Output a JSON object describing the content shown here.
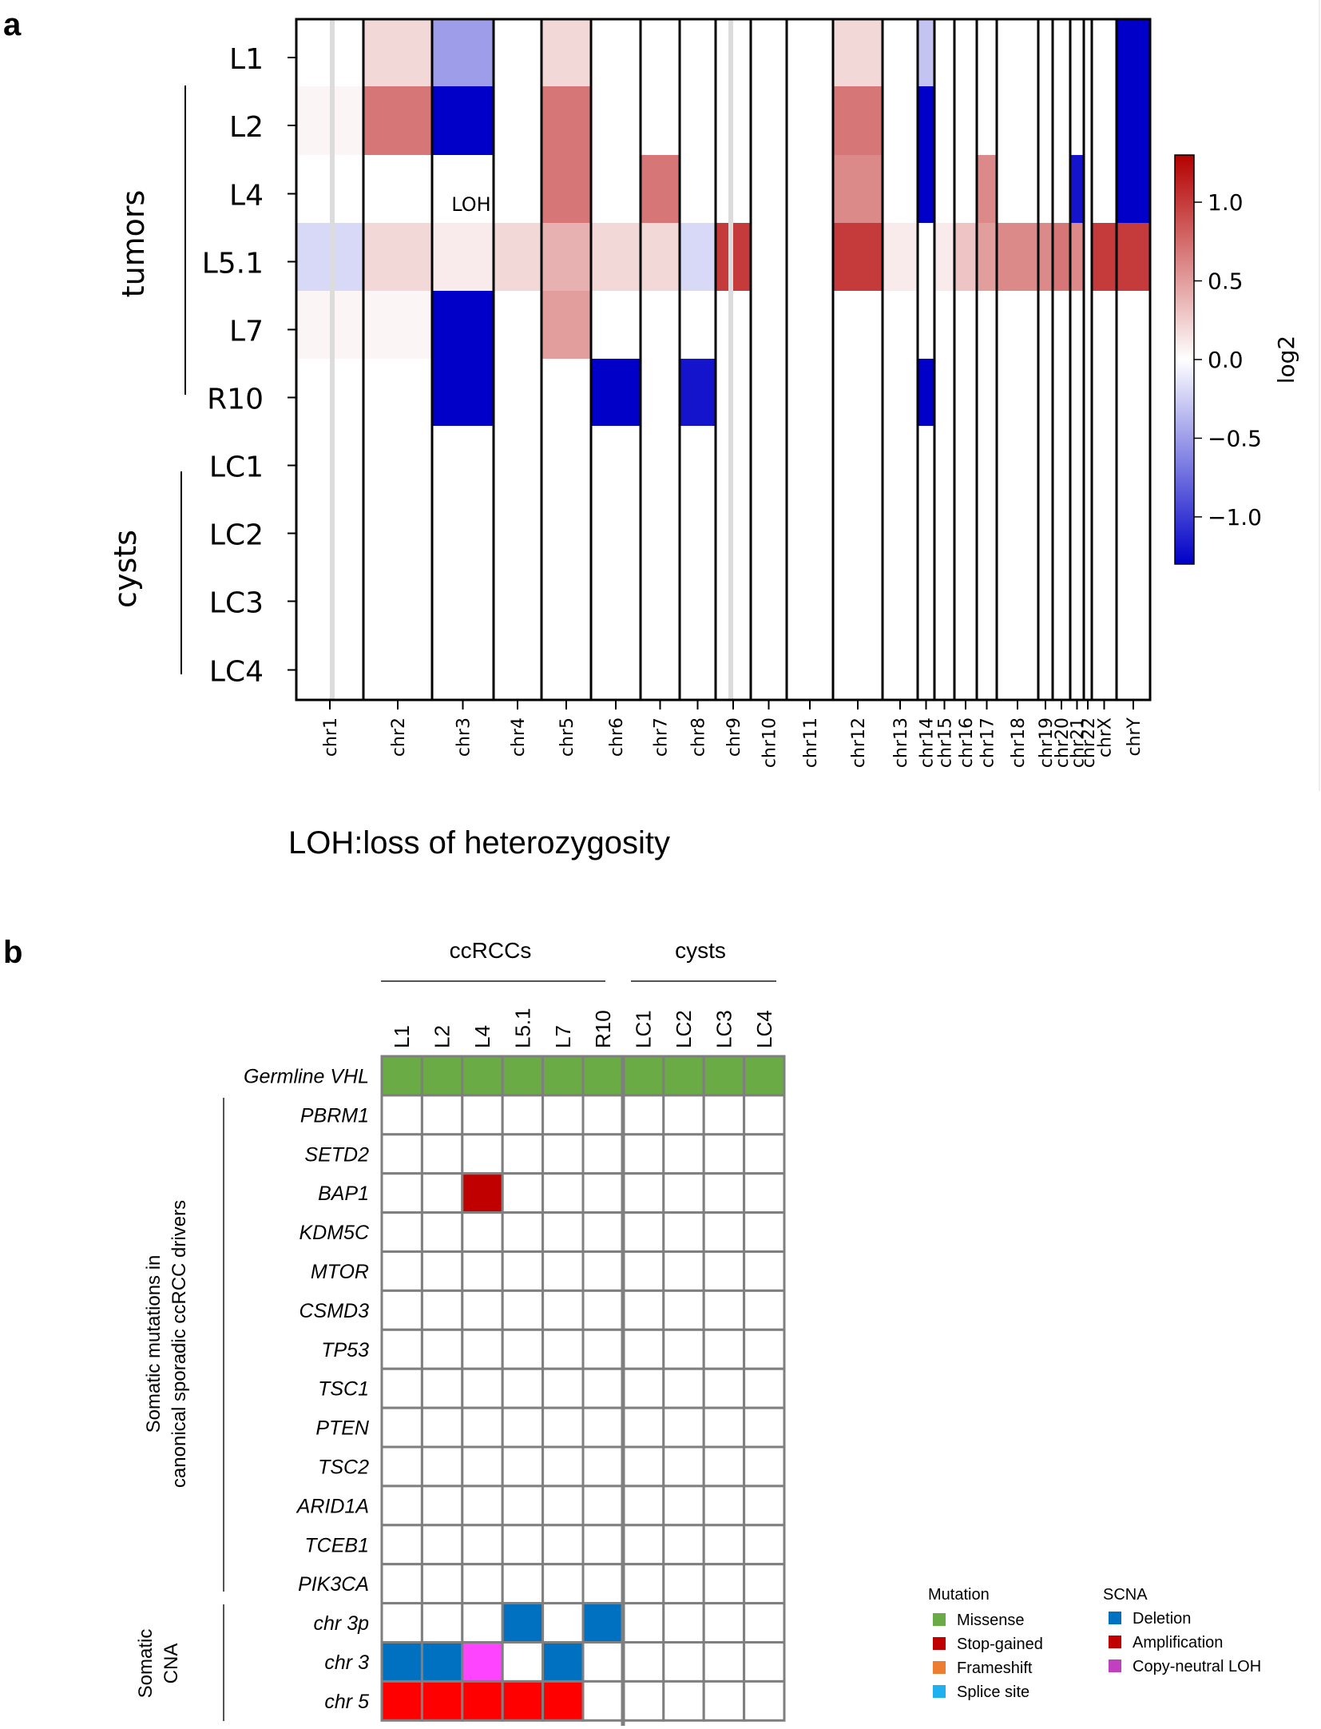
{
  "panel_a": {
    "label": "a",
    "group_tumors": "tumors",
    "group_cysts": "cysts",
    "loh_annotation": "LOH",
    "footnote": "LOH:loss of heterozygosity",
    "colorbar": {
      "label": "log2",
      "ticks": [
        "1.0",
        "0.5",
        "0.0",
        "−0.5",
        "−1.0"
      ],
      "tick_values": [
        1.0,
        0.5,
        0.0,
        -0.5,
        -1.0
      ],
      "range": [
        -1.3,
        1.3
      ],
      "colors": [
        "#0000c8",
        "#ffffff",
        "#b40000"
      ]
    }
  },
  "panel_b": {
    "label": "b",
    "group_ccrcc": "ccRCCs",
    "group_cysts": "cysts",
    "side_label_line1": "Somatic mutations in",
    "side_label_line2": "canonical sporadic ccRCC drivers",
    "cna_label_line1": "Somatic",
    "cna_label_line2": "CNA",
    "legend": {
      "mutation_title": "Mutation",
      "mutation_items": [
        {
          "label": "Missense",
          "color": "#6aab46"
        },
        {
          "label": "Stop-gained",
          "color": "#c00000"
        },
        {
          "label": "Frameshift",
          "color": "#ed7d31"
        },
        {
          "label": "Splice site",
          "color": "#1fb0ef"
        }
      ],
      "scna_title": "SCNA",
      "scna_items": [
        {
          "label": "Deletion",
          "color": "#0070c0"
        },
        {
          "label": "Amplification",
          "color": "#c00000"
        },
        {
          "label": "Copy-neutral LOH",
          "color": "#c040c0"
        }
      ]
    }
  },
  "chart_data": [
    {
      "type": "heatmap",
      "title": "",
      "xlabel": "",
      "ylabel": "",
      "rows": [
        "L1",
        "L2",
        "L4",
        "L5.1",
        "L7",
        "R10",
        "LC1",
        "LC2",
        "LC3",
        "LC4"
      ],
      "columns": [
        "chr1",
        "chr2",
        "chr3",
        "chr4",
        "chr5",
        "chr6",
        "chr7",
        "chr8",
        "chr9",
        "chr10",
        "chr11",
        "chr12",
        "chr13",
        "chr14",
        "chr15",
        "chr16",
        "chr17",
        "chr18",
        "chr19",
        "chr20",
        "chr21",
        "chr22",
        "chrX",
        "chrY"
      ],
      "values": [
        [
          0,
          0.2,
          -0.5,
          0,
          0.2,
          0,
          0,
          0,
          0,
          0,
          0,
          0.2,
          0,
          -0.3,
          0,
          0,
          0,
          0,
          0,
          0,
          0,
          0,
          0,
          -1.3
        ],
        [
          0.05,
          0.7,
          -1.3,
          0,
          0.7,
          0,
          0,
          0,
          0,
          0,
          0,
          0.7,
          0,
          -1.3,
          0,
          0,
          0,
          0,
          0,
          0,
          0,
          0,
          0,
          -1.3
        ],
        [
          0,
          0,
          0,
          0,
          0.7,
          0,
          0.7,
          0,
          0,
          0,
          0,
          0.6,
          0,
          -1.3,
          0,
          0,
          0.6,
          0,
          0,
          0,
          -1.2,
          0,
          0,
          -1.3
        ],
        [
          -0.2,
          0.2,
          0.1,
          0.2,
          0.4,
          0.2,
          0.2,
          -0.2,
          1.0,
          0,
          0,
          1.0,
          0.1,
          0,
          0.1,
          0.3,
          0.5,
          0.6,
          0.6,
          0.7,
          0.6,
          0,
          1.0,
          1.0
        ],
        [
          0.05,
          0.05,
          -1.3,
          0,
          0.5,
          0,
          0,
          0,
          0,
          0,
          0,
          0,
          0,
          0,
          0,
          0,
          0,
          0,
          0,
          0,
          0,
          0,
          0,
          0
        ],
        [
          0,
          0,
          -1.3,
          0,
          0,
          -1.3,
          0,
          -1.2,
          0,
          0,
          0,
          0,
          0,
          -1.3,
          0,
          0,
          0,
          0,
          0,
          0,
          0,
          0,
          0,
          0
        ],
        [
          0,
          0,
          0,
          0,
          0,
          0,
          0,
          0,
          0,
          0,
          0,
          0,
          0,
          0,
          0,
          0,
          0,
          0,
          0,
          0,
          0,
          0,
          0,
          0
        ],
        [
          0,
          0,
          0,
          0,
          0,
          0,
          0,
          0,
          0,
          0,
          0,
          0,
          0,
          0,
          0,
          0,
          0,
          0,
          0,
          0,
          0,
          0,
          0,
          0
        ],
        [
          0,
          0,
          0,
          0,
          0,
          0,
          0,
          0,
          0,
          0,
          0,
          0,
          0,
          0,
          0,
          0,
          0,
          0,
          0,
          0,
          0,
          0,
          0,
          0
        ],
        [
          0,
          0,
          0,
          0,
          0,
          0,
          0,
          0,
          0,
          0,
          0,
          0,
          0,
          0,
          0,
          0,
          0,
          0,
          0,
          0,
          0,
          0,
          0,
          0
        ]
      ]
    },
    {
      "type": "table",
      "title": "",
      "columns": [
        "L1",
        "L2",
        "L4",
        "L5.1",
        "L7",
        "R10",
        "LC1",
        "LC2",
        "LC3",
        "LC4"
      ],
      "rows": [
        "Germline VHL",
        "PBRM1",
        "SETD2",
        "BAP1",
        "KDM5C",
        "MTOR",
        "CSMD3",
        "TP53",
        "TSC1",
        "PTEN",
        "TSC2",
        "ARID1A",
        "TCEB1",
        "PIK3CA",
        "chr 3p",
        "chr 3",
        "chr 5"
      ],
      "color_key": {
        "M": "Missense",
        "S": "Stop-gained",
        "D": "Deletion",
        "A": "Amplification",
        "N": "Copy-neutral LOH",
        "": "none"
      },
      "cells": [
        [
          "M",
          "M",
          "M",
          "M",
          "M",
          "M",
          "M",
          "M",
          "M",
          "M"
        ],
        [
          "",
          "",
          "",
          "",
          "",
          "",
          "",
          "",
          "",
          ""
        ],
        [
          "",
          "",
          "",
          "",
          "",
          "",
          "",
          "",
          "",
          ""
        ],
        [
          "",
          "",
          "S",
          "",
          "",
          "",
          "",
          "",
          "",
          ""
        ],
        [
          "",
          "",
          "",
          "",
          "",
          "",
          "",
          "",
          "",
          ""
        ],
        [
          "",
          "",
          "",
          "",
          "",
          "",
          "",
          "",
          "",
          ""
        ],
        [
          "",
          "",
          "",
          "",
          "",
          "",
          "",
          "",
          "",
          ""
        ],
        [
          "",
          "",
          "",
          "",
          "",
          "",
          "",
          "",
          "",
          ""
        ],
        [
          "",
          "",
          "",
          "",
          "",
          "",
          "",
          "",
          "",
          ""
        ],
        [
          "",
          "",
          "",
          "",
          "",
          "",
          "",
          "",
          "",
          ""
        ],
        [
          "",
          "",
          "",
          "",
          "",
          "",
          "",
          "",
          "",
          ""
        ],
        [
          "",
          "",
          "",
          "",
          "",
          "",
          "",
          "",
          "",
          ""
        ],
        [
          "",
          "",
          "",
          "",
          "",
          "",
          "",
          "",
          "",
          ""
        ],
        [
          "",
          "",
          "",
          "",
          "",
          "",
          "",
          "",
          "",
          ""
        ],
        [
          "",
          "",
          "",
          "D",
          "",
          "D",
          "",
          "",
          "",
          ""
        ],
        [
          "D",
          "D",
          "N",
          "",
          "D",
          "",
          "",
          "",
          "",
          ""
        ],
        [
          "A",
          "A",
          "A",
          "A",
          "A",
          "",
          "",
          "",
          "",
          ""
        ]
      ],
      "fill_colors": {
        "M": "#6aab46",
        "S": "#c00000",
        "D": "#0070c0",
        "A": "#ff0000",
        "N": "#ff44ff",
        "": "#ffffff"
      }
    }
  ]
}
